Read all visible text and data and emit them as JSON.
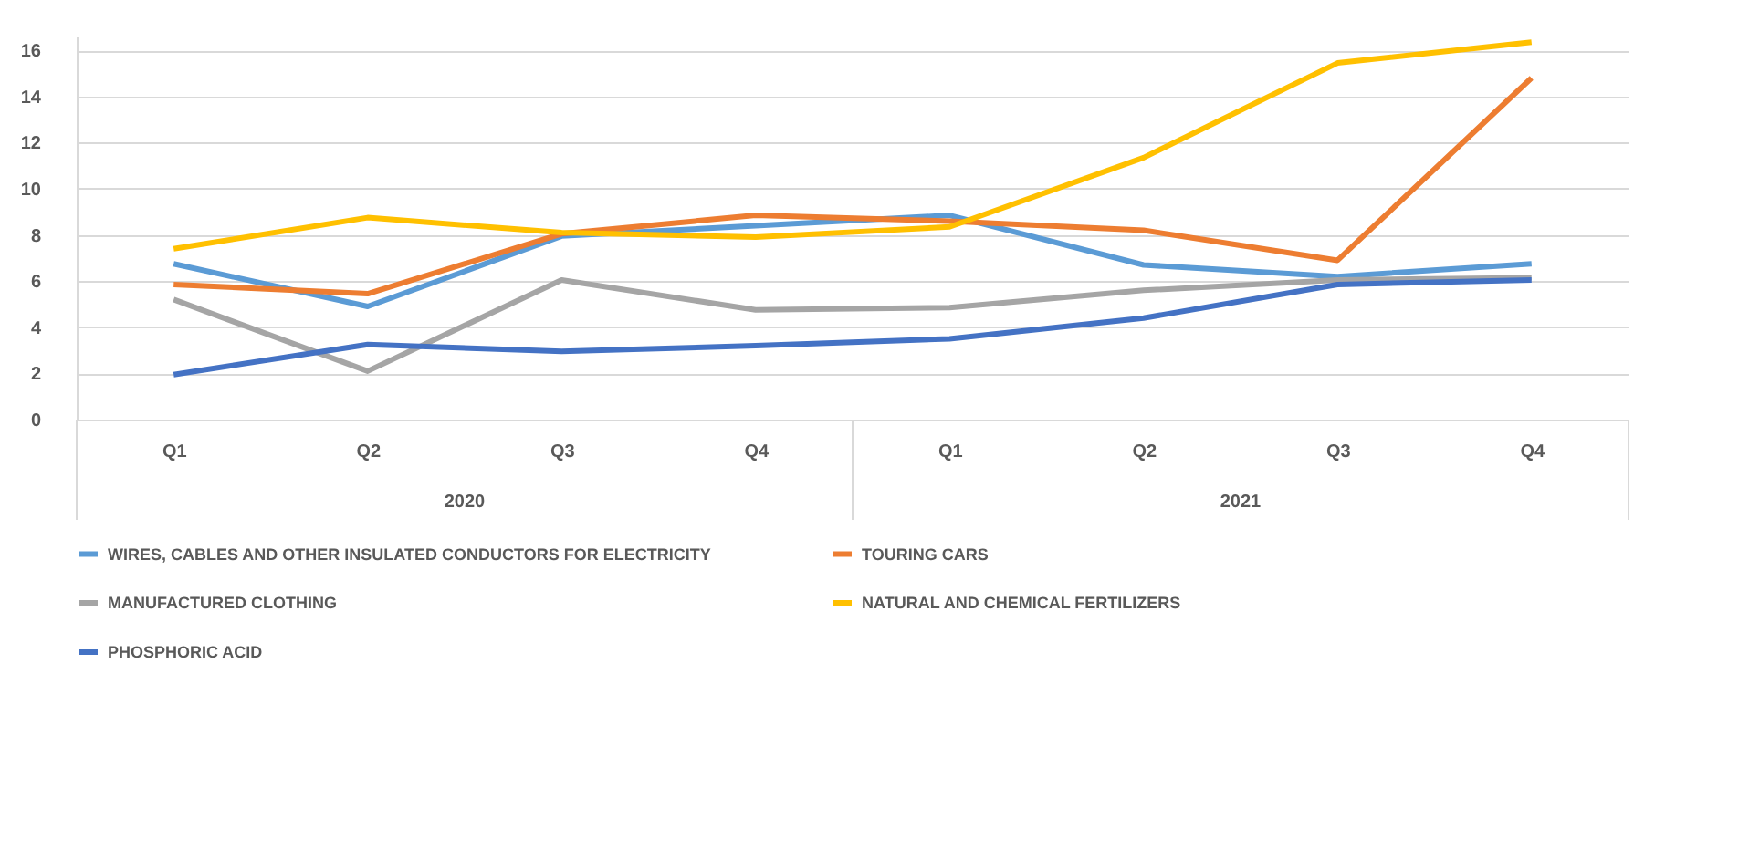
{
  "chart_data": {
    "type": "line",
    "categories": [
      "Q1",
      "Q2",
      "Q3",
      "Q4",
      "Q1",
      "Q2",
      "Q3",
      "Q4"
    ],
    "annotations": [
      "2020",
      "2021"
    ],
    "ylim": [
      0,
      16.6
    ],
    "yticks": [
      0,
      2,
      4,
      6,
      8,
      10,
      12,
      14,
      16
    ],
    "grid": "y",
    "legend": "bottom",
    "marker": "none",
    "line_style": "solid",
    "series": [
      {
        "name": "WIRES, CABLES AND OTHER INSULATED CONDUCTORS FOR ELECTRICITY",
        "color": "#5b9bd5",
        "values": [
          6.75,
          4.9,
          7.95,
          8.4,
          8.85,
          6.7,
          6.2,
          6.75
        ]
      },
      {
        "name": "TOURING CARS",
        "color": "#ed7d31",
        "values": [
          5.85,
          5.45,
          8.05,
          8.85,
          8.6,
          8.2,
          6.9,
          14.8
        ]
      },
      {
        "name": "MANUFACTURED CLOTHING",
        "color": "#a5a5a5",
        "values": [
          5.2,
          2.1,
          6.05,
          4.75,
          4.85,
          5.6,
          6.05,
          6.15
        ]
      },
      {
        "name": "NATURAL AND CHEMICAL FERTILIZERS",
        "color": "#ffc000",
        "values": [
          7.4,
          8.75,
          8.1,
          7.9,
          8.35,
          11.35,
          15.45,
          16.35
        ]
      },
      {
        "name": "PHOSPHORIC ACID",
        "color": "#4472c4",
        "values": [
          1.95,
          3.25,
          2.95,
          3.2,
          3.5,
          4.4,
          5.85,
          6.05
        ]
      }
    ]
  }
}
